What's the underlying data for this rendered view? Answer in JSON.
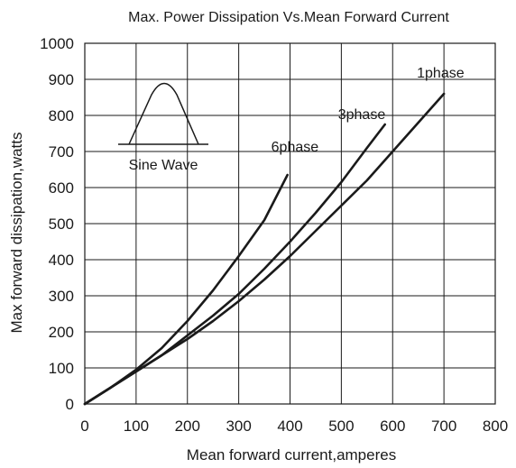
{
  "chart_data": {
    "type": "line",
    "title": "Max. Power Dissipation Vs.Mean Forward Current",
    "xlabel": "Mean forward current,amperes",
    "ylabel": "Max forward dissipation,watts",
    "xlim": [
      0,
      800
    ],
    "ylim": [
      0,
      1000
    ],
    "x_ticks": [
      "0",
      "100",
      "200",
      "300",
      "400",
      "500",
      "600",
      "700",
      "800"
    ],
    "y_ticks": [
      "0",
      "100",
      "200",
      "300",
      "400",
      "500",
      "600",
      "700",
      "800",
      "900",
      "1000"
    ],
    "grid": true,
    "series": [
      {
        "name": "6phase",
        "x": [
          0,
          50,
          100,
          150,
          200,
          250,
          300,
          350,
          395
        ],
        "y": [
          0,
          45,
          95,
          155,
          230,
          315,
          410,
          510,
          635
        ]
      },
      {
        "name": "3phase",
        "x": [
          0,
          50,
          100,
          150,
          200,
          250,
          300,
          350,
          400,
          450,
          500,
          550,
          585
        ],
        "y": [
          0,
          45,
          90,
          135,
          190,
          245,
          305,
          375,
          450,
          530,
          615,
          710,
          775
        ]
      },
      {
        "name": "1phase",
        "x": [
          0,
          50,
          100,
          150,
          200,
          250,
          300,
          350,
          400,
          450,
          500,
          550,
          600,
          650,
          700
        ],
        "y": [
          0,
          45,
          90,
          135,
          180,
          230,
          285,
          345,
          410,
          480,
          550,
          620,
          700,
          780,
          860
        ]
      }
    ],
    "inset": {
      "label": "Sine Wave"
    }
  }
}
